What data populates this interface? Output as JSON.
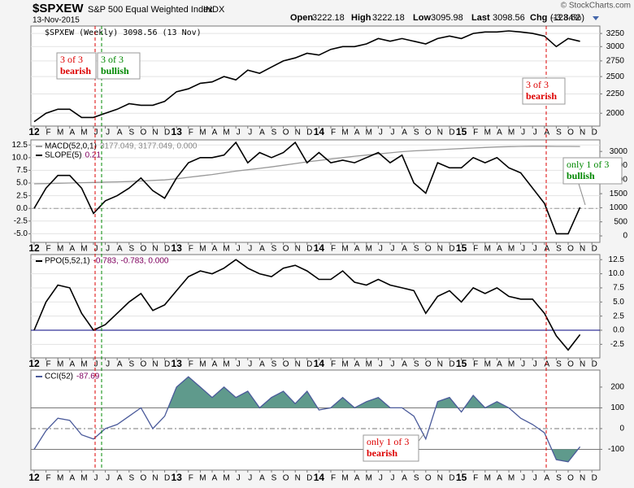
{
  "header": {
    "symbol": "$SPXEW",
    "name": "S&P 500 Equal Weighted Index",
    "exchange": "INDX",
    "date": "13-Nov-2015",
    "watermark": "© StockCharts.com",
    "quote": [
      {
        "label": "Open",
        "value": 3222.18
      },
      {
        "label": "High",
        "value": 3222.18
      },
      {
        "label": "Low",
        "value": 3095.98
      },
      {
        "label": "Last",
        "value": 3098.56
      },
      {
        "label": "Chg",
        "value": -123.62
      }
    ],
    "change_pct": "(-3.84%)"
  },
  "annotations": [
    {
      "lines": [
        "3 of 3",
        "bearish"
      ],
      "color": "#dd0000"
    },
    {
      "lines": [
        "3 of 3",
        "bullish"
      ],
      "color": "#008800"
    },
    {
      "lines": [
        "3 of 3",
        "bearish"
      ],
      "color": "#dd0000"
    },
    {
      "lines": [
        "only 1 of 3",
        "bullish"
      ],
      "color": "#008800"
    },
    {
      "lines": [
        "only 1 of 3",
        "bearish"
      ],
      "color": "#dd0000"
    }
  ],
  "chart_data": [
    {
      "type": "line",
      "title": "$SPXEW (Weekly) 3098.56 (13 Nov)",
      "log": true,
      "grid": true,
      "categories": [
        "12",
        "F",
        "M",
        "A",
        "M",
        "J",
        "J",
        "A",
        "S",
        "O",
        "N",
        "D",
        "13",
        "F",
        "M",
        "A",
        "M",
        "J",
        "J",
        "A",
        "S",
        "O",
        "N",
        "D",
        "14",
        "F",
        "M",
        "A",
        "M",
        "J",
        "J",
        "A",
        "S",
        "O",
        "N",
        "D",
        "15",
        "F",
        "M",
        "A",
        "M",
        "J",
        "J",
        "A",
        "S",
        "O",
        "N",
        "D"
      ],
      "ylim": [
        1850,
        3400
      ],
      "yticks": [
        2000,
        2250,
        2500,
        2750,
        3000,
        3250
      ],
      "series": [
        {
          "color": "#000000",
          "values": [
            1900,
            2000,
            2050,
            2050,
            1950,
            1950,
            2000,
            2050,
            2120,
            2100,
            2100,
            2150,
            2280,
            2320,
            2400,
            2420,
            2500,
            2450,
            2600,
            2550,
            2650,
            2750,
            2800,
            2880,
            2850,
            2950,
            3000,
            3000,
            3050,
            3150,
            3100,
            3150,
            3100,
            3050,
            3150,
            3200,
            3150,
            3250,
            3280,
            3280,
            3300,
            3280,
            3250,
            3200,
            3000,
            3150,
            3098.56,
            null
          ]
        }
      ]
    },
    {
      "type": "line",
      "grid": true,
      "categories": [
        "12",
        "F",
        "M",
        "A",
        "M",
        "J",
        "J",
        "A",
        "S",
        "O",
        "N",
        "D",
        "13",
        "F",
        "M",
        "A",
        "M",
        "J",
        "J",
        "A",
        "S",
        "O",
        "N",
        "D",
        "14",
        "F",
        "M",
        "A",
        "M",
        "J",
        "J",
        "A",
        "S",
        "O",
        "N",
        "D",
        "15",
        "F",
        "M",
        "A",
        "M",
        "J",
        "J",
        "A",
        "S",
        "O",
        "N",
        "D"
      ],
      "ylim": [
        -6.7,
        13.5
      ],
      "yticks": [
        {
          "value": -5,
          "label": "-5.0"
        },
        -2.5,
        {
          "value": 0,
          "label": "0.0"
        },
        2.5,
        {
          "value": 5,
          "label": "5.0"
        },
        7.5,
        {
          "value": 10,
          "label": "10.0"
        },
        12.5
      ],
      "y2lim": [
        -230,
        3410
      ],
      "y2ticks": [
        0,
        500,
        1000,
        1500,
        2000,
        2500,
        3000
      ],
      "hlines": [
        0
      ],
      "series": [
        {
          "name": "MACD(52,0,1)",
          "legend_values": "3177.049, 3177.049, 0.000",
          "color": "#999999",
          "axis": "y2",
          "values": [
            1850,
            1860,
            1870,
            1880,
            1890,
            1900,
            1910,
            1920,
            1930,
            1950,
            1970,
            1990,
            2030,
            2080,
            2130,
            2180,
            2240,
            2300,
            2350,
            2400,
            2450,
            2510,
            2570,
            2630,
            2680,
            2730,
            2780,
            2830,
            2870,
            2910,
            2950,
            2990,
            3020,
            3040,
            3060,
            3080,
            3100,
            3120,
            3140,
            3160,
            3170,
            3180,
            3185,
            3185,
            3180,
            3178,
            3177.049,
            null
          ]
        },
        {
          "name": "SLOPE(5)",
          "legend_values": "0.21",
          "color": "#000000",
          "values": [
            0,
            4,
            6.5,
            6.5,
            4,
            -1,
            1.5,
            2.5,
            4,
            6,
            3.5,
            2,
            6,
            9,
            10,
            10,
            10.5,
            13,
            9,
            11,
            10,
            11,
            13,
            9,
            11,
            9,
            9.5,
            9,
            10,
            11,
            9,
            10.5,
            5,
            3,
            9,
            8,
            8,
            10,
            9,
            10,
            8,
            7,
            4,
            1,
            -5,
            -5,
            0.21,
            null
          ]
        }
      ]
    },
    {
      "type": "line",
      "grid": true,
      "categories": [
        "12",
        "F",
        "M",
        "A",
        "M",
        "J",
        "J",
        "A",
        "S",
        "O",
        "N",
        "D",
        "13",
        "F",
        "M",
        "A",
        "M",
        "J",
        "J",
        "A",
        "S",
        "O",
        "N",
        "D",
        "14",
        "F",
        "M",
        "A",
        "M",
        "J",
        "J",
        "A",
        "S",
        "O",
        "N",
        "D",
        "15",
        "F",
        "M",
        "A",
        "M",
        "J",
        "J",
        "A",
        "S",
        "O",
        "N",
        "D"
      ],
      "ylim": [
        -4.9,
        13.4
      ],
      "yticks": [
        -2.5,
        {
          "value": 0,
          "label": "0.0"
        },
        2.5,
        {
          "value": 5,
          "label": "5.0"
        },
        7.5,
        {
          "value": 10,
          "label": "10.0"
        },
        12.5
      ],
      "hlines": [
        0
      ],
      "series": [
        {
          "name": "PPO(5,52,1)",
          "legend_values": "-0.783, -0.783, 0.000",
          "color": "#000000",
          "values": [
            0,
            5,
            8,
            7.5,
            3,
            0,
            1,
            3,
            5,
            6.5,
            3.5,
            4.5,
            7,
            9.5,
            10.5,
            10,
            11,
            12.5,
            11,
            10,
            9.5,
            11,
            11.5,
            10.5,
            9,
            9,
            10.5,
            8.5,
            8,
            9,
            8,
            7.5,
            7,
            3,
            6,
            7,
            5,
            7.5,
            6.5,
            7.5,
            6,
            5.5,
            5.5,
            3,
            -1,
            -3.5,
            -0.783,
            null
          ]
        }
      ]
    },
    {
      "type": "line",
      "grid": false,
      "categories": [
        "12",
        "F",
        "M",
        "A",
        "M",
        "J",
        "J",
        "A",
        "S",
        "O",
        "N",
        "D",
        "13",
        "F",
        "M",
        "A",
        "M",
        "J",
        "J",
        "A",
        "S",
        "O",
        "N",
        "D",
        "14",
        "F",
        "M",
        "A",
        "M",
        "J",
        "J",
        "A",
        "S",
        "O",
        "N",
        "D",
        "15",
        "F",
        "M",
        "A",
        "M",
        "J",
        "J",
        "A",
        "S",
        "O",
        "N",
        "D"
      ],
      "ylim": [
        -200,
        282
      ],
      "yticks": [
        -100,
        0,
        100,
        200
      ],
      "hlines": [
        100,
        0,
        -100
      ],
      "fill_color": "#5f9a8c",
      "series": [
        {
          "name": "CCI(52)",
          "legend_values": "-87.69",
          "color": "#4a5a9a",
          "values": [
            -100,
            -10,
            50,
            40,
            -30,
            -50,
            0,
            20,
            60,
            100,
            0,
            60,
            200,
            250,
            200,
            150,
            200,
            150,
            180,
            100,
            150,
            180,
            120,
            180,
            90,
            100,
            150,
            100,
            130,
            150,
            100,
            100,
            60,
            -50,
            130,
            150,
            80,
            160,
            100,
            130,
            100,
            50,
            20,
            -20,
            -150,
            -160,
            -87.69,
            null
          ]
        }
      ]
    }
  ]
}
